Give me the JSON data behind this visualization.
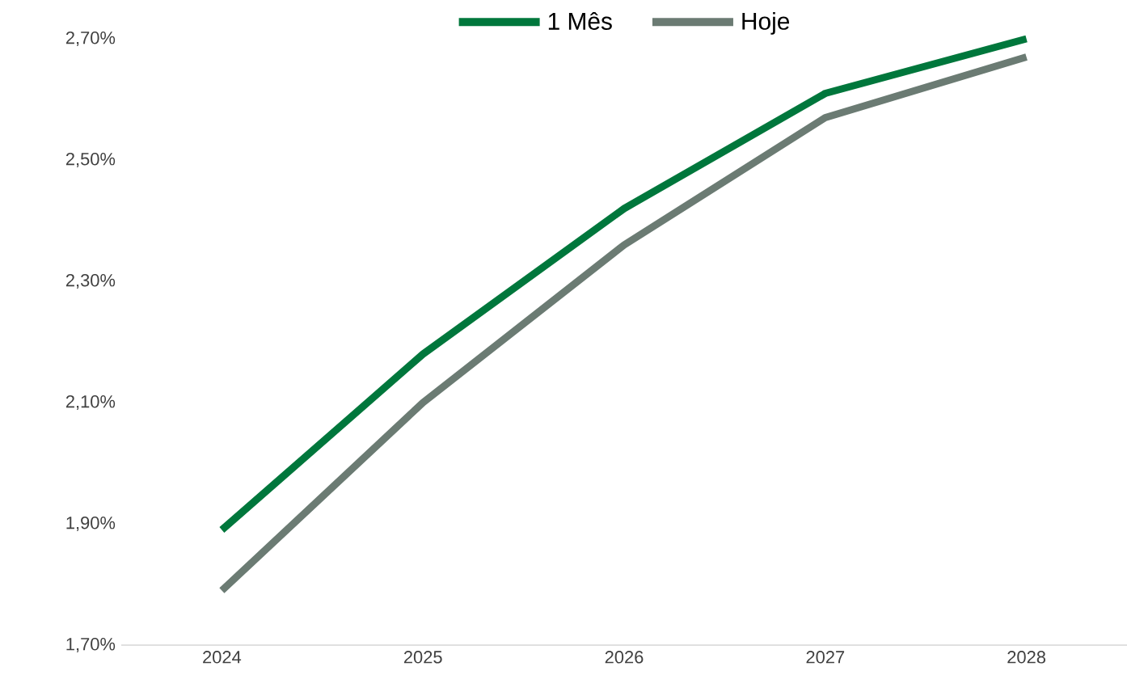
{
  "chart_data": {
    "type": "line",
    "categories": [
      "2024",
      "2025",
      "2026",
      "2027",
      "2028"
    ],
    "series": [
      {
        "name": "1 Mês",
        "color": "#00773c",
        "values": [
          1.89,
          2.18,
          2.42,
          2.61,
          2.7
        ]
      },
      {
        "name": "Hoje",
        "color": "#6b7b73",
        "values": [
          1.79,
          2.1,
          2.36,
          2.57,
          2.67
        ]
      }
    ],
    "ylim": [
      1.7,
      2.7
    ],
    "yticks": [
      {
        "value": 1.7,
        "label": "1,70%"
      },
      {
        "value": 1.9,
        "label": "1,90%"
      },
      {
        "value": 2.1,
        "label": "2,10%"
      },
      {
        "value": 2.3,
        "label": "2,30%"
      },
      {
        "value": 2.5,
        "label": "2,50%"
      },
      {
        "value": 2.7,
        "label": "2,70%"
      }
    ],
    "legend": "top",
    "marker": "none",
    "line_style": "solid",
    "grid": false
  }
}
